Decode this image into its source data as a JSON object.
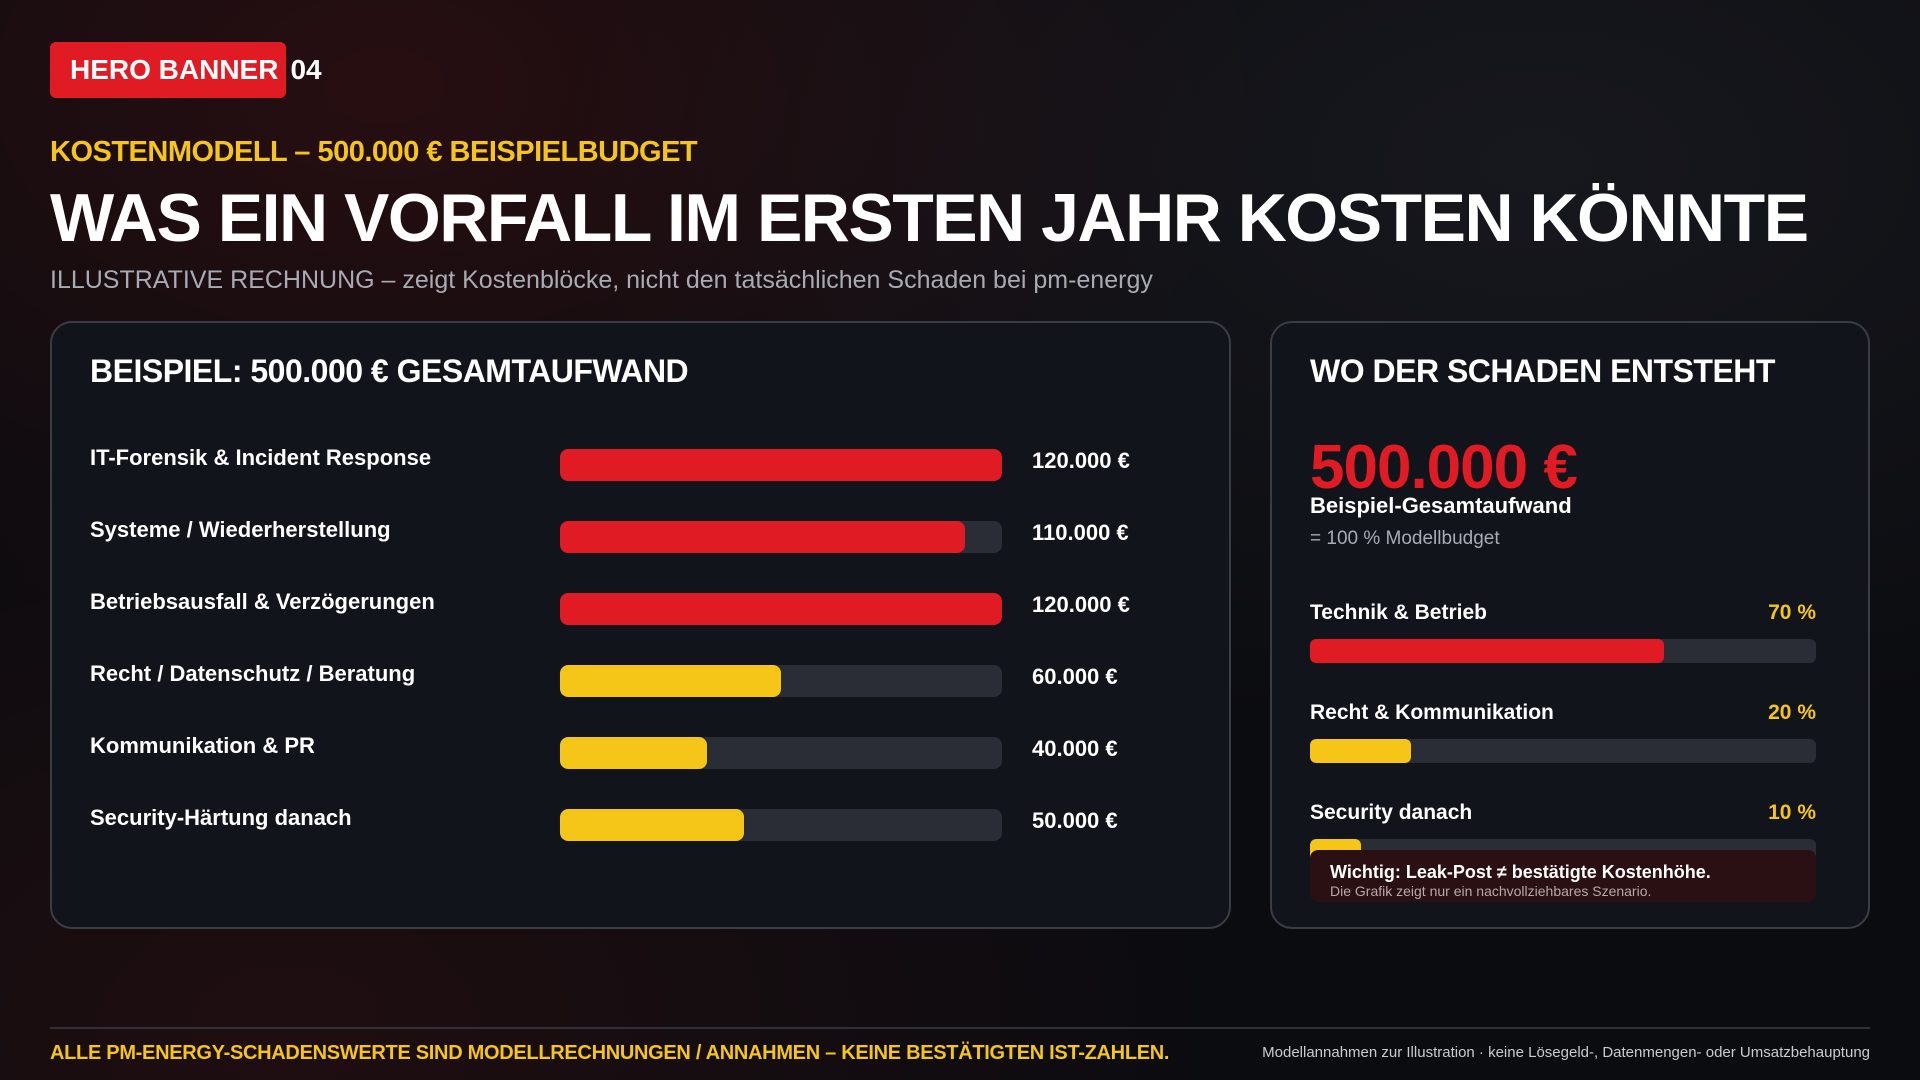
{
  "badge": {
    "label": "HERO BANNER",
    "number": "04"
  },
  "eyebrow": "KOSTENMODELL – 500.000 € BEISPIELBUDGET",
  "headline": "WAS EIN VORFALL IM ERSTEN JAHR KOSTEN KÖNNTE",
  "subline": "ILLUSTRATIVE RECHNUNG – zeigt Kostenblöcke, nicht den tatsächlichen Schaden bei pm-energy",
  "colors": {
    "red": "#e01b24",
    "yellow": "#f5c518",
    "track": "#2a2d35"
  },
  "left_card": {
    "title": "BEISPIEL: 500.000 € GESAMTAUFWAND",
    "rows": [
      {
        "label": "IT-Forensik & Incident Response",
        "value": "120.000 €",
        "fill": 1.0,
        "color": "#e01b24"
      },
      {
        "label": "Systeme / Wiederherstellung",
        "value": "110.000 €",
        "fill": 0.917,
        "color": "#e01b24"
      },
      {
        "label": "Betriebsausfall & Verzögerungen",
        "value": "120.000 €",
        "fill": 1.0,
        "color": "#e01b24"
      },
      {
        "label": "Recht / Datenschutz / Beratung",
        "value": "60.000 €",
        "fill": 0.5,
        "color": "#f5c518"
      },
      {
        "label": "Kommunikation & PR",
        "value": "40.000 €",
        "fill": 0.333,
        "color": "#f5c518"
      },
      {
        "label": "Security-Härtung danach",
        "value": "50.000 €",
        "fill": 0.417,
        "color": "#f5c518"
      }
    ]
  },
  "right_card": {
    "title": "WO DER SCHADEN ENTSTEHT",
    "total": "500.000 €",
    "total_label": "Beispiel-Gesamtaufwand",
    "total_sub": "= 100 % Modellbudget",
    "shares": [
      {
        "label": "Technik & Betrieb",
        "pct": "70 %",
        "fill": 0.7,
        "color": "#e01b24"
      },
      {
        "label": "Recht & Kommunikation",
        "pct": "20 %",
        "fill": 0.2,
        "color": "#f5c518"
      },
      {
        "label": "Security danach",
        "pct": "10 %",
        "fill": 0.1,
        "color": "#f5c518"
      }
    ],
    "note_title": "Wichtig: Leak-Post ≠ bestätigte Kostenhöhe.",
    "note_sub": "Die Grafik zeigt nur ein nachvollziehbares Szenario."
  },
  "footer": {
    "left": "ALLE PM-ENERGY-SCHADENSWERTE SIND MODELLRECHNUNGEN / ANNAHMEN – KEINE BESTÄTIGTEN IST-ZAHLEN.",
    "right": "Modellannahmen zur Illustration · keine Lösegeld-, Datenmengen- oder Umsatzbehauptung"
  }
}
